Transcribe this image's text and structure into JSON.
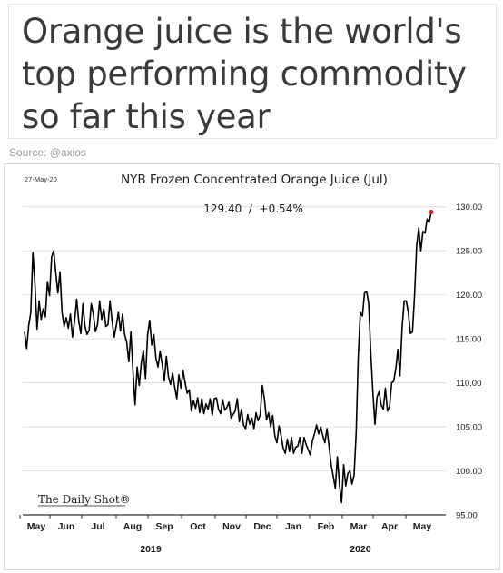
{
  "headline": "Orange juice is the world's top performing commodity so far this year",
  "source": "Source: @axios",
  "colors": {
    "line": "#000000",
    "last_point": "#e0201b",
    "grid": "#d8d8d8",
    "headline": "#3a3a3a"
  },
  "chart_data": {
    "type": "line",
    "date_label": "27-May-20",
    "title": "NYB Frozen Concentrated Orange Juice (Jul)",
    "annotation": "129.40  /  +0.54%",
    "watermark": "The Daily Shot®",
    "ylim": [
      95,
      131
    ],
    "y_ticks": [
      "130.00",
      "125.00",
      "120.00",
      "115.00",
      "110.00",
      "105.00",
      "100.00",
      "95.00"
    ],
    "y_tick_values": [
      130,
      125,
      120,
      115,
      110,
      105,
      100,
      95
    ],
    "x_month_labels": [
      "May",
      "Jun",
      "Jul",
      "Aug",
      "Sep",
      "Oct",
      "Nov",
      "Dec",
      "Jan",
      "Feb",
      "Mar",
      "Apr",
      "May"
    ],
    "x_year_labels": [
      "2019",
      "2020"
    ],
    "grid": true,
    "series": [
      {
        "values": [
          115.8,
          113.9,
          116.5,
          118.0,
          124.8,
          121.2,
          116.1,
          119.3,
          117.2,
          118.4,
          117.5,
          121.5,
          119.9,
          124.3,
          125.0,
          122.5,
          120.2,
          122.6,
          118.0,
          116.4,
          117.4,
          116.2,
          117.8,
          115.2,
          117.0,
          119.5,
          117.0,
          115.6,
          119.0,
          116.4,
          115.5,
          116.0,
          119.0,
          117.8,
          115.8,
          116.6,
          119.3,
          117.2,
          118.4,
          116.4,
          116.6,
          119.3,
          117.0,
          115.2,
          116.5,
          118.0,
          115.9,
          117.8,
          115.5,
          114.6,
          112.4,
          115.8,
          111.3,
          107.5,
          111.8,
          109.7,
          112.3,
          113.7,
          110.5,
          115.4,
          117.1,
          114.3,
          115.5,
          112.8,
          111.8,
          113.6,
          112.1,
          110.2,
          113.0,
          110.7,
          109.8,
          111.1,
          109.5,
          108.2,
          110.9,
          109.4,
          111.4,
          110.0,
          108.8,
          109.2,
          106.8,
          108.0,
          107.1,
          108.3,
          106.6,
          108.2,
          106.5,
          107.6,
          107.0,
          108.2,
          106.3,
          108.2,
          108.3,
          107.0,
          106.5,
          108.1,
          106.9,
          107.2,
          107.8,
          106.0,
          106.4,
          106.8,
          108.2,
          105.6,
          107.0,
          105.2,
          104.8,
          106.4,
          105.3,
          106.0,
          104.8,
          106.6,
          105.7,
          106.4,
          109.7,
          108.2,
          105.8,
          106.6,
          105.0,
          106.3,
          104.0,
          103.2,
          105.1,
          104.0,
          102.6,
          102.0,
          103.6,
          102.2,
          103.8,
          102.0,
          102.7,
          102.8,
          103.8,
          102.0,
          103.8,
          103.0,
          102.4,
          101.8,
          103.4,
          104.2,
          105.2,
          104.2,
          105.0,
          104.0,
          103.2,
          104.8,
          102.8,
          100.7,
          99.4,
          98.0,
          101.6,
          98.4,
          96.4,
          100.7,
          98.3,
          99.7,
          100.0,
          98.5,
          99.5,
          104.3,
          113.0,
          118.0,
          117.6,
          120.2,
          120.4,
          119.0,
          113.4,
          109.0,
          105.3,
          108.4,
          109.0,
          107.5,
          107.0,
          109.4,
          106.8,
          107.3,
          110.0,
          110.2,
          111.6,
          113.8,
          110.8,
          116.2,
          119.3,
          119.3,
          118.0,
          115.6,
          115.8,
          120.0,
          125.6,
          127.6,
          125.0,
          127.2,
          127.0,
          128.6,
          128.2,
          129.4
        ]
      }
    ]
  }
}
